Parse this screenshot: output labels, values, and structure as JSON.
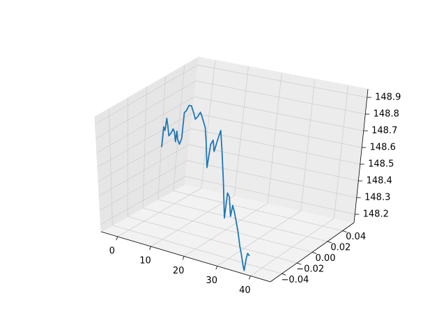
{
  "chart_data": {
    "type": "line",
    "projection": "3d",
    "title": "",
    "xlabel": "",
    "ylabel": "",
    "zlabel": "",
    "xlim": [
      -5,
      46
    ],
    "ylim": [
      -0.055,
      0.055
    ],
    "zlim": [
      148.15,
      148.95
    ],
    "x_ticks": [
      "0",
      "10",
      "20",
      "30",
      "40"
    ],
    "y_ticks": [
      "−0.04",
      "−0.02",
      "0.00",
      "0.02",
      "0.04"
    ],
    "z_ticks": [
      "148.2",
      "148.3",
      "148.4",
      "148.5",
      "148.6",
      "148.7",
      "148.8",
      "148.9"
    ],
    "x_tick_values": [
      0,
      10,
      20,
      30,
      40
    ],
    "y_tick_values": [
      -0.04,
      -0.02,
      0.0,
      0.02,
      0.04
    ],
    "z_tick_values": [
      148.2,
      148.3,
      148.4,
      148.5,
      148.6,
      148.7,
      148.8,
      148.9
    ],
    "grid": true,
    "series": [
      {
        "color": "#1f77b4",
        "points": [
          [
            0,
            0,
            148.58
          ],
          [
            0.4,
            0,
            148.71
          ],
          [
            0.8,
            0,
            148.69
          ],
          [
            1.2,
            0,
            148.77
          ],
          [
            1.6,
            0,
            148.72
          ],
          [
            2.0,
            0,
            148.66
          ],
          [
            2.6,
            0,
            148.68
          ],
          [
            3.2,
            0,
            148.71
          ],
          [
            3.6,
            0,
            148.69
          ],
          [
            4.0,
            0,
            148.63
          ],
          [
            4.3,
            0,
            148.7
          ],
          [
            4.6,
            0,
            148.65
          ],
          [
            5.2,
            0,
            148.62
          ],
          [
            5.8,
            0,
            148.66
          ],
          [
            6.3,
            0,
            148.83
          ],
          [
            6.8,
            0,
            148.84
          ],
          [
            7.6,
            0,
            148.88
          ],
          [
            8.3,
            0,
            148.88
          ],
          [
            9.0,
            0,
            148.84
          ],
          [
            9.6,
            0,
            148.8
          ],
          [
            10.3,
            0,
            148.82
          ],
          [
            11.0,
            0,
            148.85
          ],
          [
            11.6,
            0,
            148.82
          ],
          [
            12.6,
            0,
            148.76
          ],
          [
            13.0,
            0,
            148.68
          ],
          [
            13.6,
            0,
            148.51
          ],
          [
            14.4,
            0,
            148.66
          ],
          [
            15.1,
            0,
            148.69
          ],
          [
            15.5,
            0,
            148.62
          ],
          [
            16.3,
            0,
            148.69
          ],
          [
            17.2,
            0,
            148.76
          ],
          [
            17.8,
            0,
            148.64
          ],
          [
            18.6,
            0,
            148.45
          ],
          [
            19.4,
            0,
            148.22
          ],
          [
            20.0,
            0,
            148.38
          ],
          [
            20.6,
            0,
            148.36
          ],
          [
            21.2,
            0,
            148.24
          ],
          [
            21.7,
            0,
            148.31
          ],
          [
            22.2,
            0,
            148.28
          ],
          [
            22.8,
            0,
            148.23
          ],
          [
            23.6,
            0,
            148.16
          ],
          [
            24.4,
            0,
            148.07
          ],
          [
            25.0,
            0,
            148.02
          ],
          [
            25.6,
            0,
            147.96
          ],
          [
            26.0,
            0,
            147.93
          ],
          [
            26.5,
            0,
            148.01
          ],
          [
            26.8,
            0,
            148.04
          ],
          [
            27.3,
            0,
            148.03
          ]
        ]
      }
    ]
  }
}
